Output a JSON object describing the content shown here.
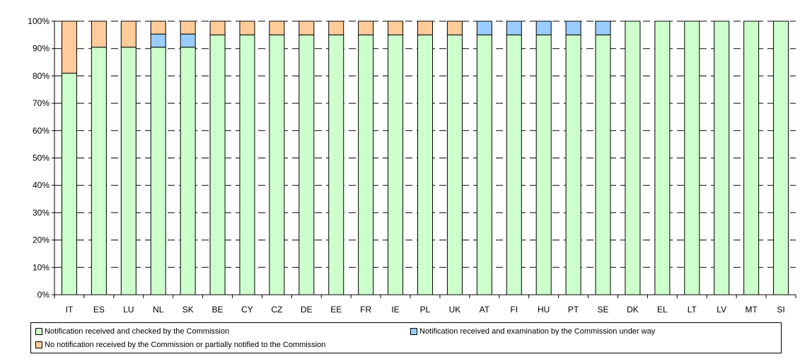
{
  "chart_data": {
    "type": "bar",
    "stacked": true,
    "grid": true,
    "legend_position": "bottom",
    "ylim": [
      0,
      100
    ],
    "yticks": [
      "0%",
      "10%",
      "20%",
      "30%",
      "40%",
      "50%",
      "60%",
      "70%",
      "80%",
      "90%",
      "100%"
    ],
    "categories": [
      "IT",
      "ES",
      "LU",
      "NL",
      "SK",
      "BE",
      "CY",
      "CZ",
      "DE",
      "EE",
      "FR",
      "IE",
      "PL",
      "UK",
      "AT",
      "FI",
      "HU",
      "PT",
      "SE",
      "DK",
      "EL",
      "LT",
      "LV",
      "MT",
      "SI"
    ],
    "series": [
      {
        "name": "Notification received and checked by the Commission",
        "color": "#ccffcc",
        "values": [
          81,
          90.5,
          90.5,
          90.5,
          90.5,
          95,
          95,
          95,
          95,
          95,
          95,
          95,
          95,
          95,
          95,
          95,
          95,
          95,
          95,
          100,
          100,
          100,
          100,
          100,
          100
        ]
      },
      {
        "name": "Notification received and examination by the Commission under way",
        "color": "#99ccff",
        "values": [
          0,
          0,
          0,
          4.8,
          4.8,
          0,
          0,
          0,
          0,
          0,
          0,
          0,
          0,
          0,
          5,
          5,
          5,
          5,
          5,
          0,
          0,
          0,
          0,
          0,
          0
        ]
      },
      {
        "name": "No notification received by the Commission or partially notified to the Commission",
        "color": "#ffcc99",
        "values": [
          19,
          9.5,
          9.5,
          4.7,
          4.7,
          5,
          5,
          5,
          5,
          5,
          5,
          5,
          5,
          5,
          0,
          0,
          0,
          0,
          0,
          0,
          0,
          0,
          0,
          0,
          0
        ]
      }
    ]
  }
}
